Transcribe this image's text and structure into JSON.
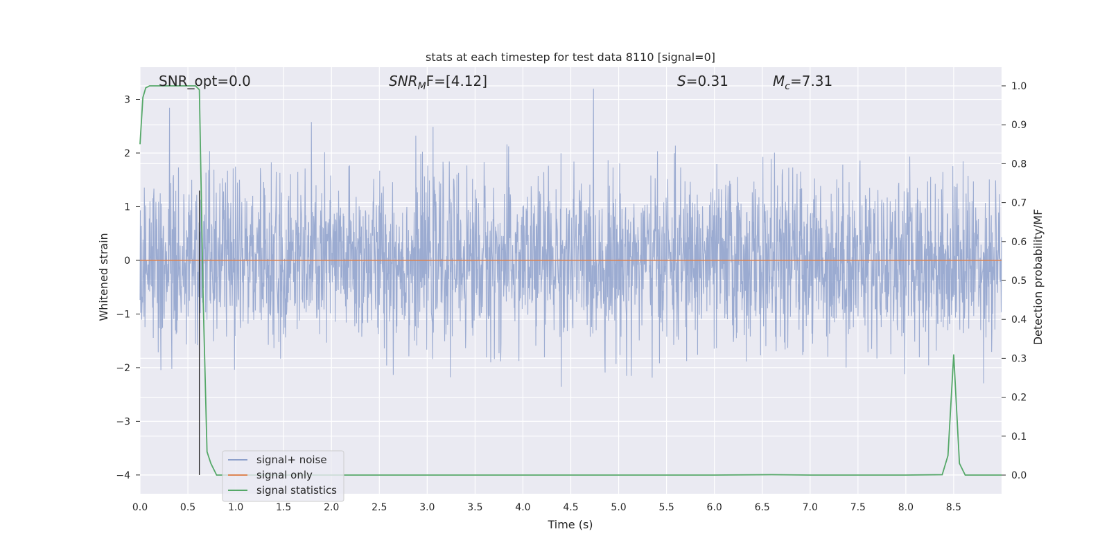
{
  "chart_data": {
    "type": "line",
    "title": "stats at each timestep for test data 8110 [signal=0]",
    "xlabel": "Time (s)",
    "ylabel_left": "Whitened strain",
    "ylabel_right": "Detection probability/MF",
    "xlim": [
      0.0,
      9.0
    ],
    "ylim_left": [
      -4.35,
      3.6
    ],
    "ylim_right": [
      -0.048,
      1.048
    ],
    "x_ticks": [
      0.0,
      0.5,
      1.0,
      1.5,
      2.0,
      2.5,
      3.0,
      3.5,
      4.0,
      4.5,
      5.0,
      5.5,
      6.0,
      6.5,
      7.0,
      7.5,
      8.0,
      8.5
    ],
    "x_tick_labels": [
      "0.0",
      "0.5",
      "1.0",
      "1.5",
      "2.0",
      "2.5",
      "3.0",
      "3.5",
      "4.0",
      "4.5",
      "5.0",
      "5.5",
      "6.0",
      "6.5",
      "7.0",
      "7.5",
      "8.0",
      "8.5"
    ],
    "y_left_ticks": [
      3,
      2,
      1,
      0,
      -1,
      -2,
      -3,
      -4
    ],
    "y_left_tick_labels": [
      "3",
      "2",
      "1",
      "0",
      "−1",
      "−2",
      "−3",
      "−4"
    ],
    "y_right_ticks": [
      1.0,
      0.9,
      0.8,
      0.7,
      0.6,
      0.5,
      0.4,
      0.3,
      0.2,
      0.1,
      0.0
    ],
    "y_right_tick_labels": [
      "1.0",
      "0.9",
      "0.8",
      "0.7",
      "0.6",
      "0.5",
      "0.4",
      "0.3",
      "0.2",
      "0.1",
      "0.0"
    ],
    "annotations": {
      "snr_opt": "SNR_opt=0.0",
      "snr_mf_base": "SNR",
      "snr_mf_sub": "M",
      "snr_mf_rest": "F=[4.12]",
      "s_var": "S",
      "s_rest": "=0.31",
      "mc_var": "M",
      "mc_sub": "c",
      "mc_rest": "=7.31"
    },
    "marker_line": {
      "x": 0.62,
      "y_from": 1.3,
      "y_to": -4.0
    },
    "series": [
      {
        "name": "signal+ noise",
        "color": "#8da0cb",
        "axis": "left",
        "kind": "noise",
        "spread": 0.78,
        "seed": 8110
      },
      {
        "name": "signal only",
        "color": "#dd8452",
        "axis": "left",
        "values_x": [
          0.0,
          9.0
        ],
        "values_y": [
          0.0,
          0.0
        ]
      },
      {
        "name": "signal statistics",
        "color": "#55a868",
        "axis": "right",
        "values_x": [
          0.0,
          0.03,
          0.06,
          0.1,
          0.15,
          0.2,
          0.3,
          0.4,
          0.5,
          0.58,
          0.62,
          0.66,
          0.7,
          0.74,
          0.8,
          1.0,
          2.0,
          3.0,
          4.0,
          5.0,
          6.0,
          6.6,
          7.0,
          8.0,
          8.38,
          8.44,
          8.5,
          8.56,
          8.62,
          8.7,
          9.0
        ],
        "values_y": [
          0.85,
          0.97,
          0.995,
          1.0,
          1.0,
          1.0,
          1.0,
          1.0,
          1.0,
          1.0,
          0.99,
          0.45,
          0.06,
          0.03,
          0.0,
          0.0,
          0.0,
          0.0,
          0.0,
          0.0,
          0.0,
          0.001,
          0.0,
          0.0,
          0.001,
          0.05,
          0.31,
          0.03,
          0.0,
          0.0,
          0.0
        ]
      }
    ],
    "legend": {
      "placement": "lower-left",
      "entries": [
        "signal+ noise",
        "signal only",
        "signal statistics"
      ]
    }
  },
  "colors": {
    "plot_background": "#eaeaf2",
    "grid": "#ffffff",
    "noise": "#8da0cb",
    "signal": "#dd8452",
    "stats": "#55a868",
    "marker": "#262626"
  }
}
